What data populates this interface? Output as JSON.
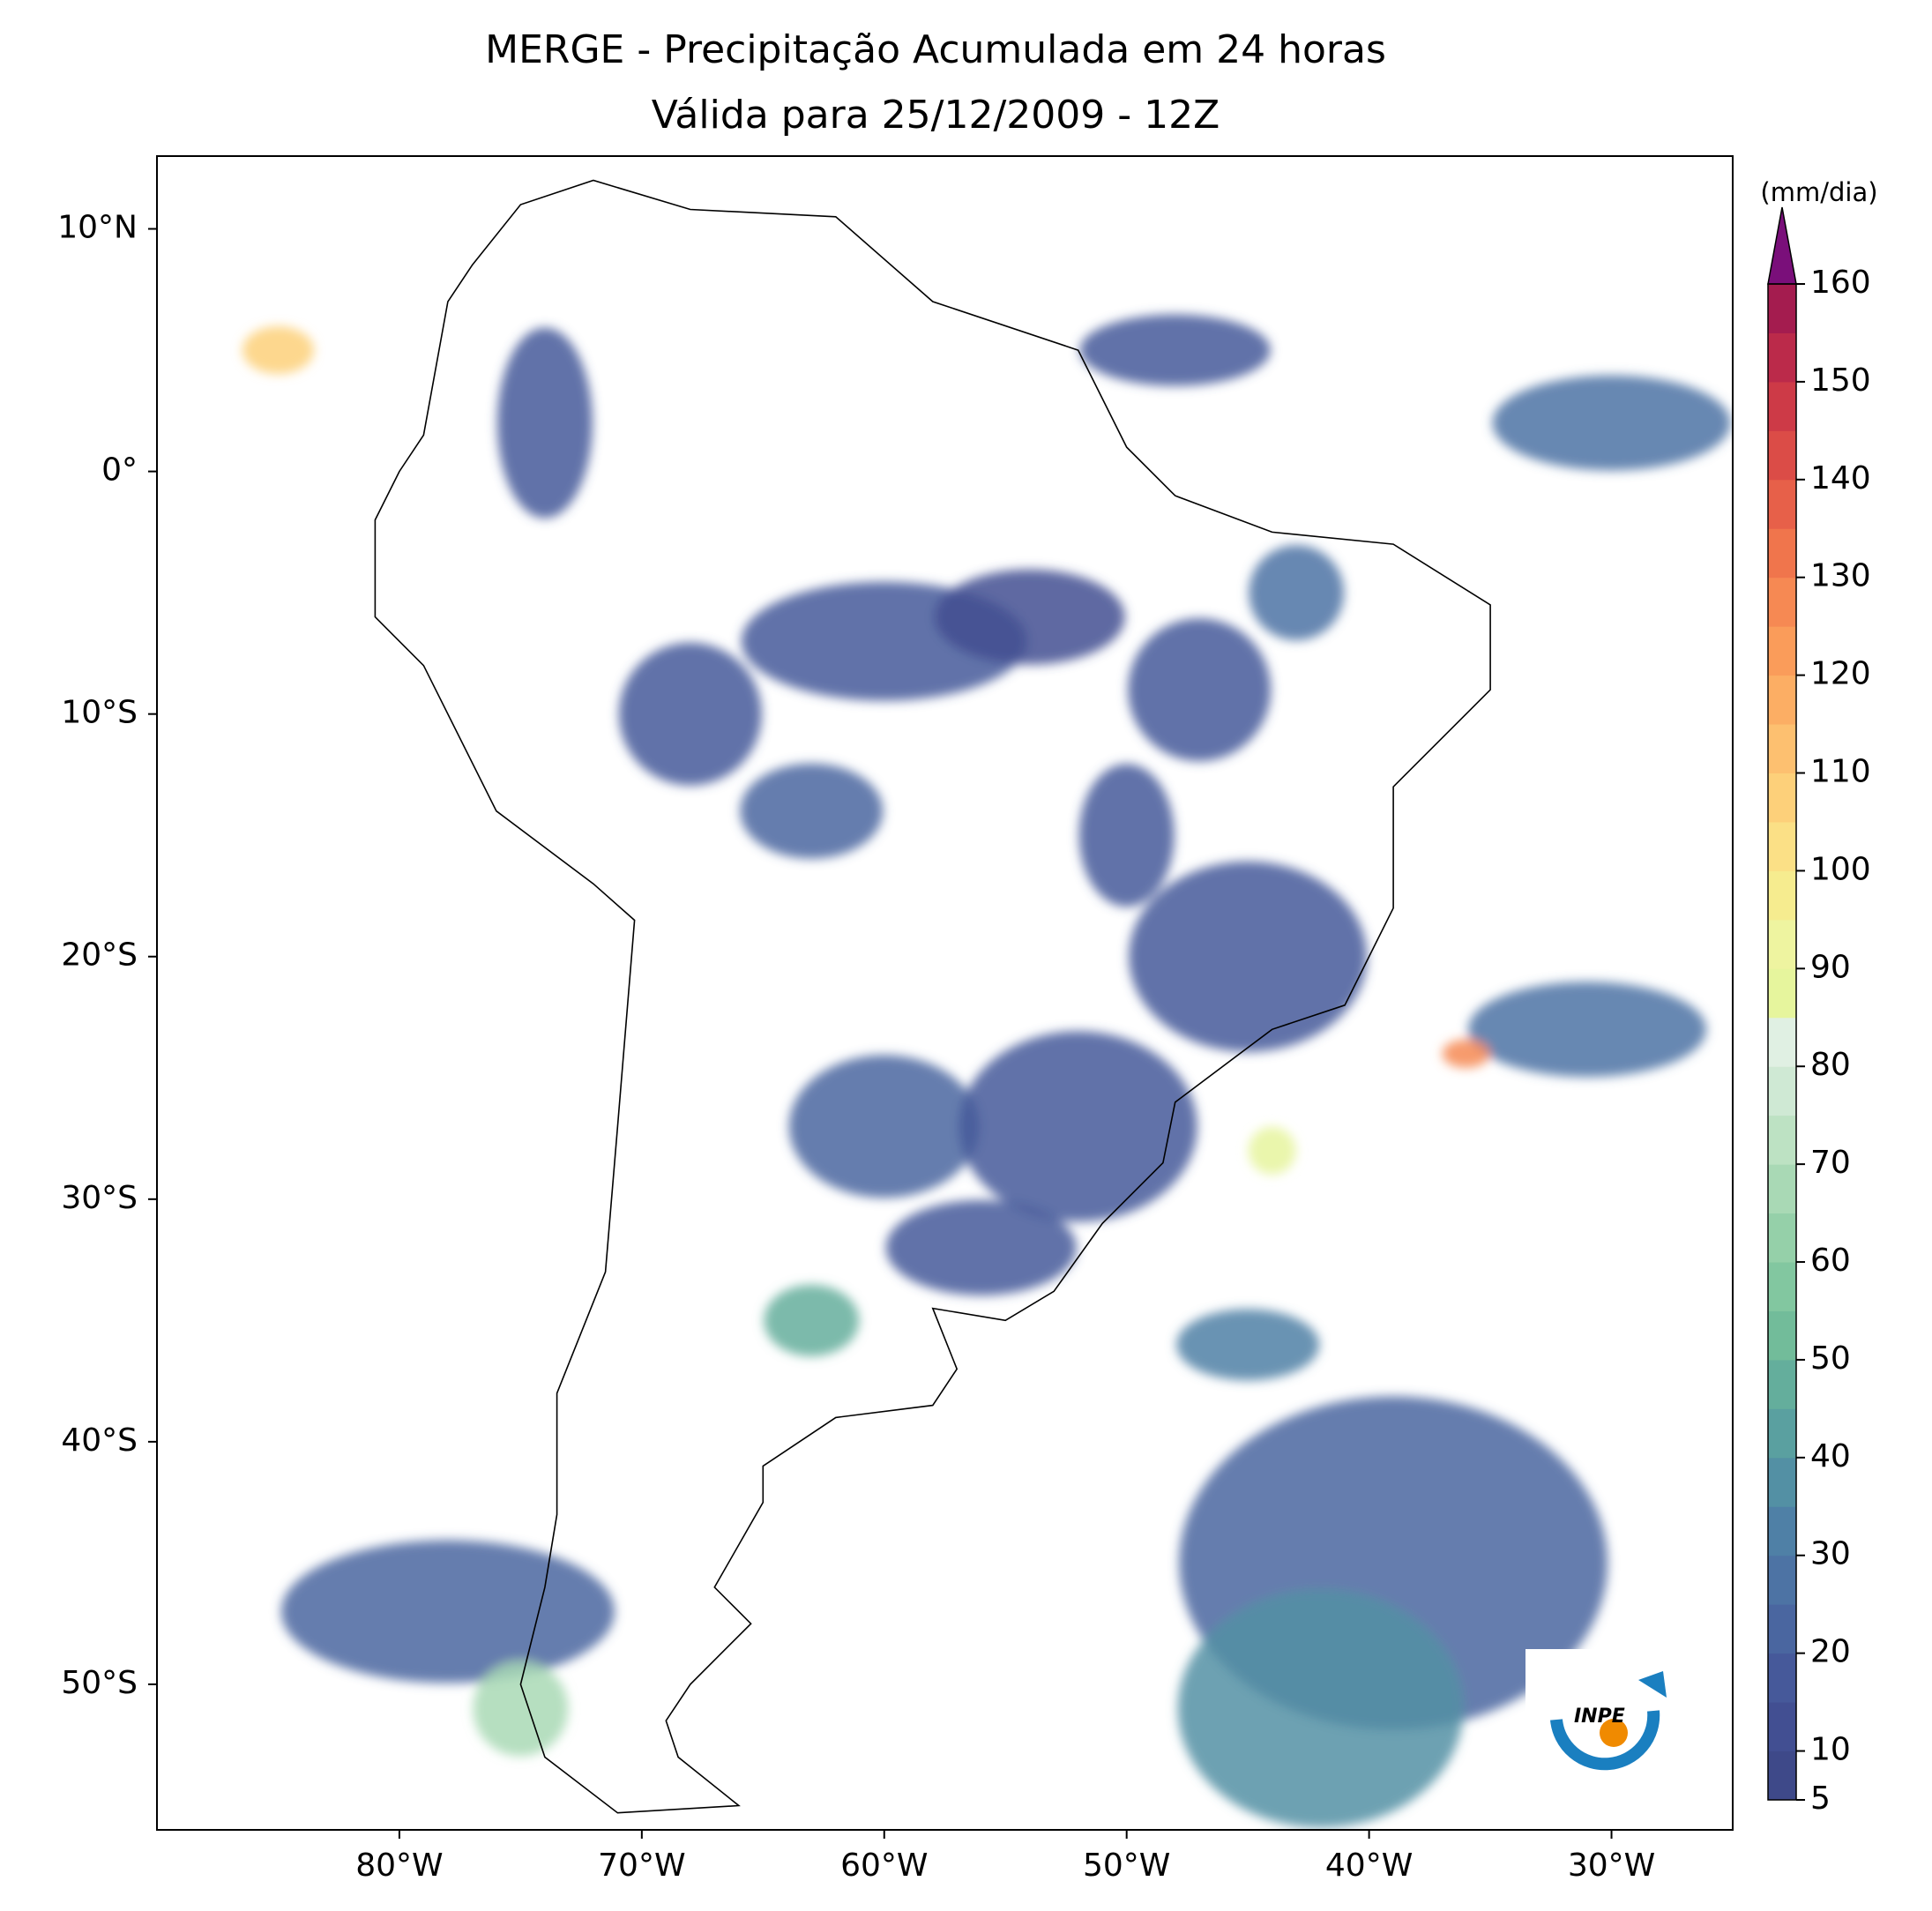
{
  "chart_data": {
    "type": "map",
    "title": "MERGE - Precipitação Acumulada em 24 horas",
    "subtitle": "Válida para 25/12/2009 - 12Z",
    "xlim": [
      -90,
      -25
    ],
    "ylim": [
      -56,
      13
    ],
    "xticks": [
      {
        "value": -80,
        "label": "80°W"
      },
      {
        "value": -70,
        "label": "70°W"
      },
      {
        "value": -60,
        "label": "60°W"
      },
      {
        "value": -50,
        "label": "50°W"
      },
      {
        "value": -40,
        "label": "40°W"
      },
      {
        "value": -30,
        "label": "30°W"
      }
    ],
    "yticks": [
      {
        "value": 10,
        "label": "10°N"
      },
      {
        "value": 0,
        "label": "0°"
      },
      {
        "value": -10,
        "label": "10°S"
      },
      {
        "value": -20,
        "label": "20°S"
      },
      {
        "value": -30,
        "label": "30°S"
      },
      {
        "value": -40,
        "label": "40°S"
      },
      {
        "value": -50,
        "label": "50°S"
      }
    ],
    "colorbar": {
      "label": "(mm/dia)",
      "lim": [
        5,
        160
      ],
      "ticks": [
        5,
        10,
        20,
        30,
        40,
        50,
        60,
        70,
        80,
        90,
        100,
        110,
        120,
        130,
        140,
        150,
        160
      ],
      "colors": [
        "#3e4989",
        "#424f92",
        "#46599a",
        "#4a66a0",
        "#4d73a4",
        "#4f80a6",
        "#5390a4",
        "#5aa0a0",
        "#64ae9c",
        "#72bc9a",
        "#82c7a0",
        "#95d0a9",
        "#a9d9b5",
        "#bde2c3",
        "#cfe9d4",
        "#e0f0e3",
        "#e6f59d",
        "#eef4a0",
        "#f6ec8f",
        "#fbe086",
        "#fdd07a",
        "#fdc070",
        "#fcae64",
        "#fa9c5a",
        "#f68953",
        "#f0754c",
        "#e76049",
        "#db4c47",
        "#cd3a47",
        "#bb2a4a",
        "#a41c4f"
      ],
      "extend_color": "#7a0f7a"
    },
    "logo": "INPE"
  }
}
